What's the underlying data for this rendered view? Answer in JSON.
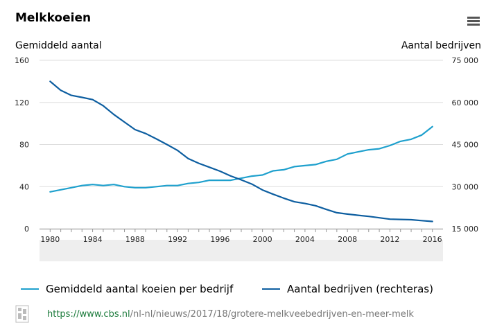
{
  "header": {
    "title": "Melkkoeien",
    "menu_icon": "hamburger-menu-icon"
  },
  "axes": {
    "left_label": "Gemiddeld aantal",
    "right_label": "Aantal bedrijven"
  },
  "chart_data": {
    "type": "line",
    "x": [
      1980,
      1981,
      1982,
      1983,
      1984,
      1985,
      1986,
      1987,
      1988,
      1989,
      1990,
      1991,
      1992,
      1993,
      1994,
      1995,
      1996,
      1997,
      1998,
      1999,
      2000,
      2001,
      2002,
      2003,
      2004,
      2005,
      2006,
      2007,
      2008,
      2009,
      2010,
      2011,
      2012,
      2013,
      2014,
      2015,
      2016
    ],
    "x_ticks": [
      "1980",
      "1984",
      "1988",
      "1992",
      "1996",
      "2000",
      "2004",
      "2008",
      "2012",
      "2016"
    ],
    "x_tick_values": [
      1980,
      1984,
      1988,
      1992,
      1996,
      2000,
      2004,
      2008,
      2012,
      2016
    ],
    "xlim": [
      1979,
      2017
    ],
    "y_left": {
      "label": "Gemiddeld aantal",
      "ylim": [
        0,
        160
      ],
      "ticks": [
        "0",
        "40",
        "80",
        "120",
        "160"
      ],
      "tick_values": [
        0,
        40,
        80,
        120,
        160
      ]
    },
    "y_right": {
      "label": "Aantal bedrijven",
      "ylim": [
        15000,
        75000
      ],
      "ticks": [
        "15 000",
        "30 000",
        "45 000",
        "60 000",
        "75 000"
      ],
      "tick_values": [
        15000,
        30000,
        45000,
        60000,
        75000
      ]
    },
    "grid": true,
    "legend_position": "bottom",
    "series": [
      {
        "name": "Gemiddeld aantal koeien per bedrijf",
        "axis": "left",
        "color": "#1ea0cd",
        "values": [
          35,
          37,
          39,
          41,
          42,
          41,
          42,
          40,
          39,
          39,
          40,
          41,
          41,
          43,
          44,
          46,
          46,
          46,
          48,
          50,
          51,
          55,
          56,
          59,
          60,
          61,
          64,
          66,
          71,
          73,
          75,
          76,
          79,
          83,
          85,
          89,
          97
        ]
      },
      {
        "name": "Aantal bedrijven (rechteras)",
        "axis": "right",
        "color": "#0d5ea0",
        "values": [
          67500,
          64300,
          62500,
          61800,
          61000,
          58800,
          55700,
          53000,
          50300,
          48900,
          47000,
          45000,
          42900,
          40000,
          38300,
          36900,
          35500,
          33800,
          32400,
          30900,
          28800,
          27300,
          25900,
          24600,
          24000,
          23200,
          21900,
          20700,
          20200,
          19800,
          19400,
          18900,
          18400,
          18300,
          18200,
          17900,
          17600
        ]
      }
    ]
  },
  "legend": [
    {
      "label": "Gemiddeld aantal koeien per bedrijf",
      "color": "#1ea0cd"
    },
    {
      "label": "Aantal bedrijven (rechteras)",
      "color": "#0d5ea0"
    }
  ],
  "source": {
    "logo": "cbs-logo-icon",
    "url_host": "https://www.cbs.nl",
    "url_path": "/nl-nl/nieuws/2017/18/grotere-melkveebedrijven-en-meer-melk"
  }
}
